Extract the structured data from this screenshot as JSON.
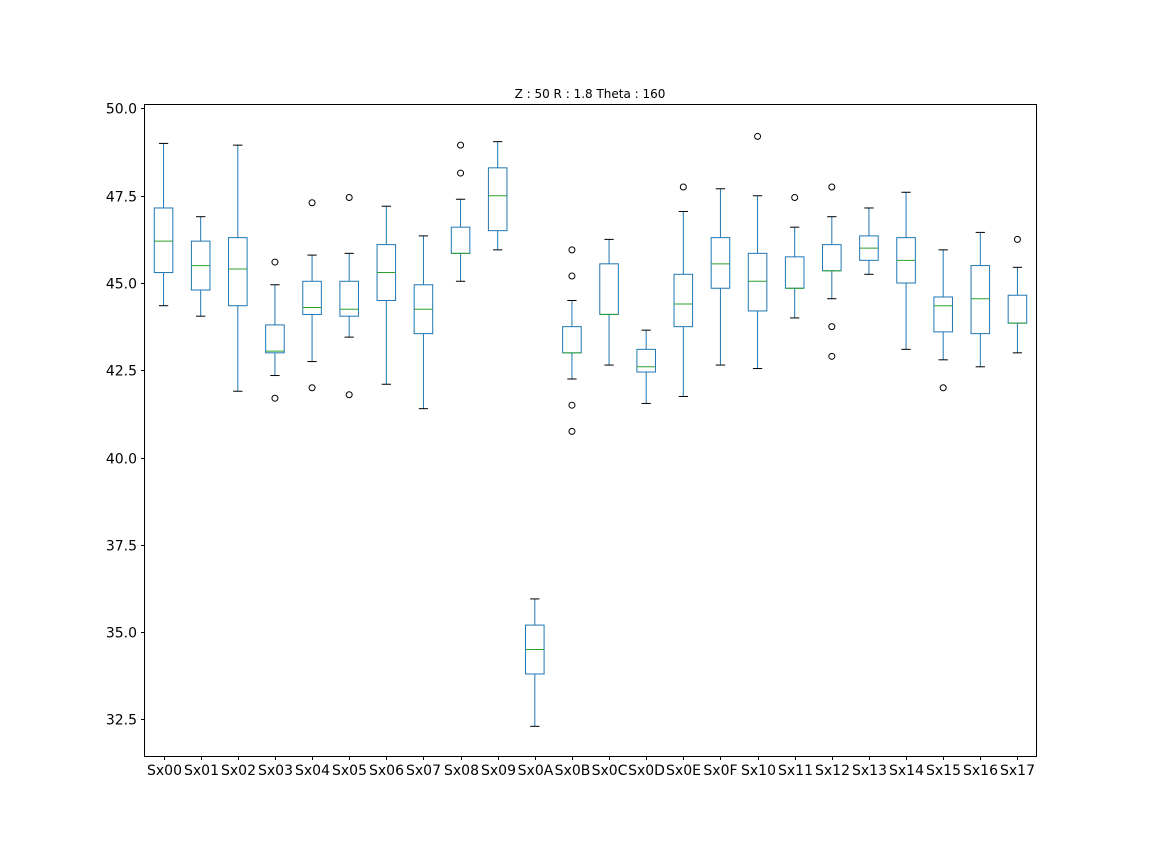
{
  "chart_data": {
    "type": "box",
    "title": "Z : 50 R : 1.8  Theta : 160",
    "xlabel": "",
    "ylabel": "",
    "ylim": [
      31.45,
      50.1
    ],
    "yticks": [
      "32.5",
      "35.0",
      "37.5",
      "40.0",
      "42.5",
      "45.0",
      "47.5",
      "50.0"
    ],
    "grid": false,
    "colors": {
      "box": "#1f77b4",
      "median": "#2ca02c",
      "whisker": "#1f77b4",
      "cap": "#000000",
      "flier": "#000000"
    },
    "categories": [
      "Sx00",
      "Sx01",
      "Sx02",
      "Sx03",
      "Sx04",
      "Sx05",
      "Sx06",
      "Sx07",
      "Sx08",
      "Sx09",
      "Sx0A",
      "Sx0B",
      "Sx0C",
      "Sx0D",
      "Sx0E",
      "Sx0F",
      "Sx10",
      "Sx11",
      "Sx12",
      "Sx13",
      "Sx14",
      "Sx15",
      "Sx16",
      "Sx17"
    ],
    "boxes": [
      {
        "whislo": 44.35,
        "q1": 45.3,
        "med": 46.2,
        "q3": 47.15,
        "whishi": 49.0,
        "fliers": []
      },
      {
        "whislo": 44.05,
        "q1": 44.8,
        "med": 45.5,
        "q3": 46.2,
        "whishi": 46.9,
        "fliers": []
      },
      {
        "whislo": 41.9,
        "q1": 44.35,
        "med": 45.4,
        "q3": 46.3,
        "whishi": 48.95,
        "fliers": []
      },
      {
        "whislo": 42.35,
        "q1": 43.0,
        "med": 43.05,
        "q3": 43.8,
        "whishi": 44.95,
        "fliers": [
          45.6,
          41.7
        ]
      },
      {
        "whislo": 42.75,
        "q1": 44.1,
        "med": 44.3,
        "q3": 45.05,
        "whishi": 45.8,
        "fliers": [
          47.3,
          42.0
        ]
      },
      {
        "whislo": 43.45,
        "q1": 44.05,
        "med": 44.25,
        "q3": 45.05,
        "whishi": 45.85,
        "fliers": [
          47.45,
          41.8
        ]
      },
      {
        "whislo": 42.1,
        "q1": 44.5,
        "med": 45.3,
        "q3": 46.1,
        "whishi": 47.2,
        "fliers": []
      },
      {
        "whislo": 41.4,
        "q1": 43.55,
        "med": 44.25,
        "q3": 44.95,
        "whishi": 46.35,
        "fliers": []
      },
      {
        "whislo": 45.05,
        "q1": 45.85,
        "med": 45.85,
        "q3": 46.6,
        "whishi": 47.4,
        "fliers": [
          48.15,
          48.95
        ]
      },
      {
        "whislo": 45.95,
        "q1": 46.5,
        "med": 47.5,
        "q3": 48.3,
        "whishi": 49.05,
        "fliers": []
      },
      {
        "whislo": 32.3,
        "q1": 33.8,
        "med": 34.5,
        "q3": 35.2,
        "whishi": 35.95,
        "fliers": []
      },
      {
        "whislo": 42.25,
        "q1": 43.0,
        "med": 43.0,
        "q3": 43.75,
        "whishi": 44.5,
        "fliers": [
          45.95,
          45.2,
          41.5,
          40.75
        ]
      },
      {
        "whislo": 42.65,
        "q1": 44.1,
        "med": 44.1,
        "q3": 45.55,
        "whishi": 46.25,
        "fliers": []
      },
      {
        "whislo": 41.55,
        "q1": 42.45,
        "med": 42.6,
        "q3": 43.1,
        "whishi": 43.65,
        "fliers": []
      },
      {
        "whislo": 41.75,
        "q1": 43.75,
        "med": 44.4,
        "q3": 45.25,
        "whishi": 47.05,
        "fliers": [
          47.75
        ]
      },
      {
        "whislo": 42.65,
        "q1": 44.85,
        "med": 45.55,
        "q3": 46.3,
        "whishi": 47.7,
        "fliers": []
      },
      {
        "whislo": 42.55,
        "q1": 44.2,
        "med": 45.05,
        "q3": 45.85,
        "whishi": 47.5,
        "fliers": [
          49.2
        ]
      },
      {
        "whislo": 44.0,
        "q1": 44.85,
        "med": 44.85,
        "q3": 45.75,
        "whishi": 46.6,
        "fliers": [
          47.45
        ]
      },
      {
        "whislo": 44.55,
        "q1": 45.35,
        "med": 45.35,
        "q3": 46.1,
        "whishi": 46.9,
        "fliers": [
          47.75,
          43.75,
          42.9
        ]
      },
      {
        "whislo": 45.25,
        "q1": 45.65,
        "med": 46.0,
        "q3": 46.35,
        "whishi": 47.15,
        "fliers": []
      },
      {
        "whislo": 43.1,
        "q1": 45.0,
        "med": 45.65,
        "q3": 46.3,
        "whishi": 47.6,
        "fliers": []
      },
      {
        "whislo": 42.8,
        "q1": 43.6,
        "med": 44.35,
        "q3": 44.6,
        "whishi": 45.95,
        "fliers": [
          42.0
        ]
      },
      {
        "whislo": 42.6,
        "q1": 43.55,
        "med": 44.55,
        "q3": 45.5,
        "whishi": 46.45,
        "fliers": []
      },
      {
        "whislo": 43.0,
        "q1": 43.85,
        "med": 43.85,
        "q3": 44.65,
        "whishi": 45.45,
        "fliers": [
          46.25
        ]
      }
    ]
  }
}
